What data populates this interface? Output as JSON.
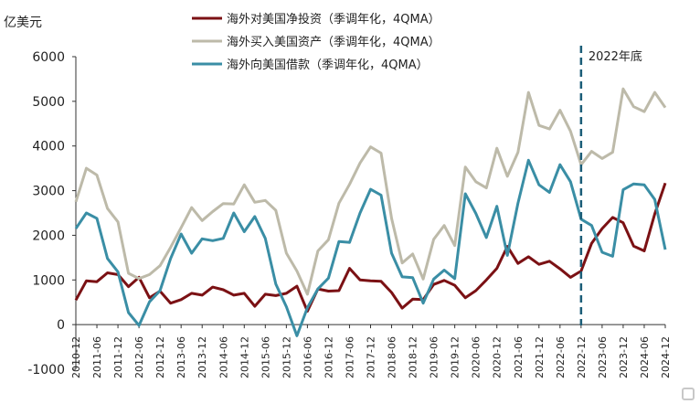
{
  "chart_data": {
    "type": "line",
    "y_unit": "亿美元",
    "ylim": [
      -1000,
      6000
    ],
    "y_ticks": [
      -1000,
      0,
      1000,
      2000,
      3000,
      4000,
      5000,
      6000
    ],
    "x_tick_labels": [
      "2010-12",
      "2011-06",
      "2011-12",
      "2012-06",
      "2012-12",
      "2013-06",
      "2013-12",
      "2014-06",
      "2014-12",
      "2015-06",
      "2015-12",
      "2016-06",
      "2016-12",
      "2017-06",
      "2017-12",
      "2018-06",
      "2018-12",
      "2019-06",
      "2019-12",
      "2020-06",
      "2020-12",
      "2021-06",
      "2021-12",
      "2022-06",
      "2022-12",
      "2023-06",
      "2023-12",
      "2024-06",
      "2024-12"
    ],
    "grid": false,
    "legend_position": "top-center",
    "annotation": {
      "label": "2022年底",
      "x": "2022-12",
      "style": "dashed-vertical"
    },
    "series": [
      {
        "name": "海外对美国净投资（季调年化，4QMA）",
        "color": "#7b1114",
        "values": [
          550,
          980,
          960,
          1160,
          1120,
          850,
          1060,
          600,
          750,
          480,
          560,
          700,
          660,
          840,
          780,
          660,
          700,
          410,
          680,
          650,
          700,
          860,
          300,
          800,
          750,
          760,
          1260,
          1000,
          980,
          970,
          720,
          370,
          570,
          560,
          900,
          990,
          880,
          600,
          760,
          1000,
          1260,
          1750,
          1370,
          1520,
          1350,
          1420,
          1250,
          1060,
          1200,
          1820,
          2150,
          2400,
          2280,
          1760,
          1650,
          2480,
          3170
        ]
      },
      {
        "name": "海外买入美国资产（季调年化，4QMA）",
        "color": "#bdbaa9",
        "values": [
          2750,
          3500,
          3350,
          2600,
          2300,
          1150,
          1030,
          1120,
          1320,
          1730,
          2170,
          2620,
          2330,
          2530,
          2710,
          2700,
          3130,
          2740,
          2780,
          2560,
          1600,
          1200,
          680,
          1650,
          1900,
          2720,
          3140,
          3620,
          3980,
          3840,
          2380,
          1380,
          1580,
          1020,
          1910,
          2220,
          1770,
          3530,
          3200,
          3060,
          3950,
          3320,
          3860,
          5200,
          4460,
          4380,
          4800,
          4330,
          3580,
          3880,
          3720,
          3860,
          5280,
          4880,
          4770,
          5200,
          4860
        ]
      },
      {
        "name": "海外向美国借款（季调年化，4QMA）",
        "color": "#3a8ea5",
        "values": [
          2150,
          2500,
          2380,
          1480,
          1180,
          270,
          -20,
          510,
          760,
          1480,
          2030,
          1600,
          1920,
          1880,
          1930,
          2500,
          2080,
          2420,
          1930,
          910,
          400,
          -250,
          380,
          800,
          1040,
          1860,
          1840,
          2500,
          3030,
          2900,
          1600,
          1070,
          1050,
          480,
          1020,
          1220,
          1030,
          2930,
          2490,
          1950,
          2650,
          1550,
          2720,
          3680,
          3130,
          2960,
          3580,
          3200,
          2360,
          2220,
          1620,
          1530,
          3020,
          3150,
          3130,
          2800,
          1680
        ]
      }
    ]
  }
}
